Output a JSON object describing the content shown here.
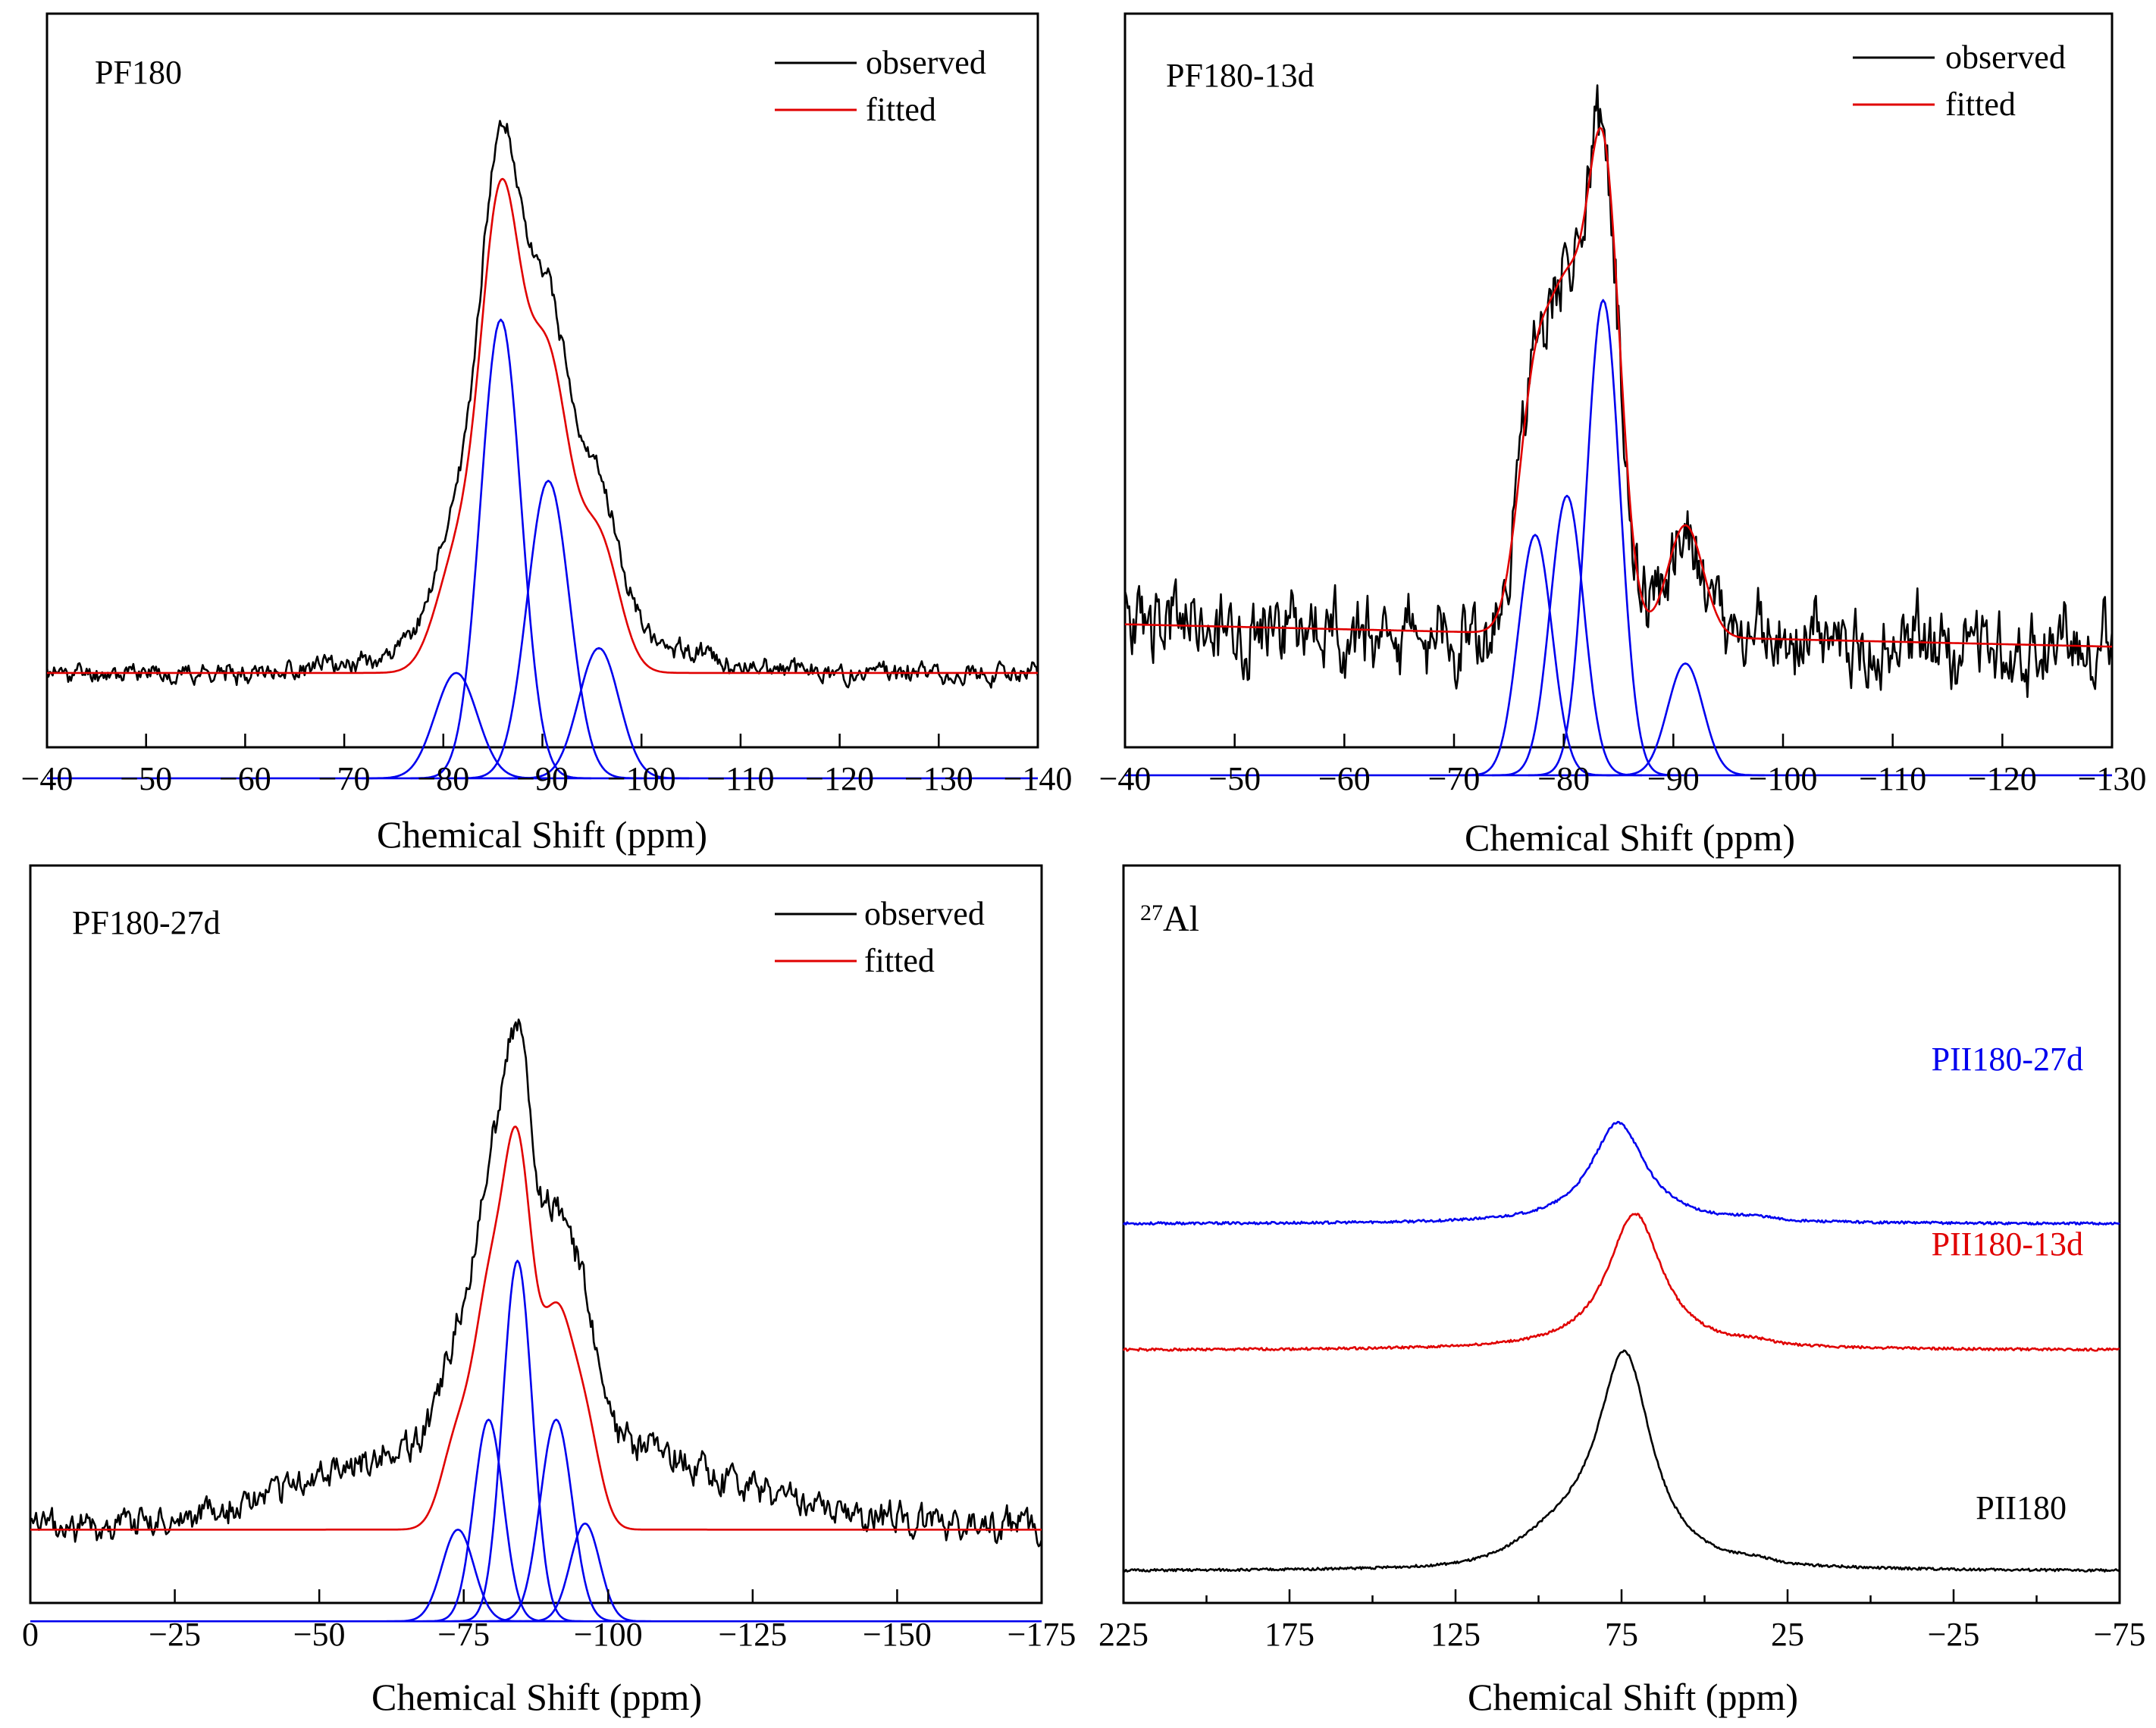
{
  "colors": {
    "observed": "#000000",
    "fitted": "#e00000",
    "components": "#0000ee",
    "blue_label": "#0000ee",
    "red_label": "#e00000",
    "black_label": "#000000"
  },
  "chart_data": [
    {
      "id": "p1",
      "type": "line",
      "title": "PF180",
      "xlabel": "Chemical Shift (ppm)",
      "ylabel": "",
      "xlim": [
        -40,
        -140
      ],
      "xticks": [
        -40,
        -50,
        -60,
        -70,
        -80,
        -90,
        -100,
        -110,
        -120,
        -130,
        -140
      ],
      "xtick_labels": [
        "−40",
        "−50",
        "−60",
        "−70",
        "−80",
        "−90",
        "−100",
        "−110",
        "−120",
        "−130",
        "−140"
      ],
      "ylim": [
        -0.12,
        1.0
      ],
      "legend": {
        "position": "top-right",
        "entries": [
          "observed",
          "fitted"
        ]
      },
      "fitted_baseline": 0.0,
      "component_baseline": -0.17,
      "components": [
        {
          "center": -81.3,
          "amplitude": 0.17,
          "fwhm": 5.0
        },
        {
          "center": -85.8,
          "amplitude": 0.74,
          "fwhm": 4.8
        },
        {
          "center": -90.6,
          "amplitude": 0.48,
          "fwhm": 5.0
        },
        {
          "center": -95.7,
          "amplitude": 0.21,
          "fwhm": 4.8
        }
      ],
      "broad": [
        {
          "center": -90,
          "amplitude": 0.1,
          "fwhm": 24
        }
      ],
      "noise": 0.012,
      "seed": 11
    },
    {
      "id": "p2",
      "type": "line",
      "title": "PF180-13d",
      "xlabel": "Chemical Shift (ppm)",
      "ylabel": "",
      "xlim": [
        -40,
        -130
      ],
      "xticks": [
        -40,
        -50,
        -60,
        -70,
        -80,
        -90,
        -100,
        -110,
        -120,
        -130
      ],
      "xtick_labels": [
        "−40",
        "−50",
        "−60",
        "−70",
        "−80",
        "−90",
        "−100",
        "−110",
        "−120",
        "−130"
      ],
      "ylim": [
        -0.2,
        1.05
      ],
      "legend": {
        "position": "top-right",
        "entries": [
          "observed",
          "fitted"
        ]
      },
      "fitted_baseline": 0.02,
      "fitted_baseline_end": -0.02,
      "component_baseline": -0.25,
      "components": [
        {
          "center": -77.4,
          "amplitude": 0.43,
          "fwhm": 3.6
        },
        {
          "center": -80.3,
          "amplitude": 0.5,
          "fwhm": 3.6
        },
        {
          "center": -83.6,
          "amplitude": 0.85,
          "fwhm": 3.6
        },
        {
          "center": -91.1,
          "amplitude": 0.2,
          "fwhm": 3.8
        }
      ],
      "broad": [],
      "noise": 0.055,
      "seed": 23
    },
    {
      "id": "p3",
      "type": "line",
      "title": "PF180-27d",
      "xlabel": "Chemical Shift (ppm)",
      "ylabel": "",
      "xlim": [
        0,
        -175
      ],
      "xticks": [
        0,
        -25,
        -50,
        -75,
        -100,
        -125,
        -150,
        -175
      ],
      "xtick_labels": [
        "0",
        "−25",
        "−50",
        "−75",
        "−100",
        "−125",
        "−150",
        "−175"
      ],
      "ylim": [
        -0.12,
        1.0
      ],
      "legend": {
        "position": "top-right",
        "entries": [
          "observed",
          "fitted"
        ]
      },
      "fitted_baseline": 0.0,
      "component_baseline": -0.15,
      "components": [
        {
          "center": -74.0,
          "amplitude": 0.15,
          "fwhm": 6.5
        },
        {
          "center": -79.3,
          "amplitude": 0.33,
          "fwhm": 6.0
        },
        {
          "center": -84.3,
          "amplitude": 0.59,
          "fwhm": 6.0
        },
        {
          "center": -91.0,
          "amplitude": 0.33,
          "fwhm": 6.5
        },
        {
          "center": -96.0,
          "amplitude": 0.16,
          "fwhm": 6.0
        }
      ],
      "broad": [
        {
          "center": -85,
          "amplitude": 0.17,
          "fwhm": 70
        }
      ],
      "noise": 0.02,
      "seed": 37
    },
    {
      "id": "p4",
      "type": "line",
      "title": "27Al",
      "title_superscript": "27",
      "title_main": "Al",
      "xlabel": "Chemical Shift (ppm)",
      "ylabel": "",
      "xlim": [
        225,
        -75
      ],
      "xticks": [
        225,
        175,
        125,
        75,
        25,
        -25,
        -75
      ],
      "xtick_labels": [
        "225",
        "175",
        "125",
        "75",
        "25",
        "−25",
        "−75"
      ],
      "minor_xticks": [
        200,
        150,
        100,
        50,
        0,
        -50
      ],
      "ylim": [
        -0.15,
        3.1
      ],
      "series": [
        {
          "name": "PII180",
          "offset": 0.0,
          "amplitude": 1.0,
          "center": 74.0,
          "shoulder": 0.12,
          "color_key": "black_label",
          "seed": 51
        },
        {
          "name": "PII180-13d",
          "offset": 1.05,
          "amplitude": 0.65,
          "center": 71.0,
          "shoulder": 0.0,
          "color_key": "red_label",
          "seed": 52
        },
        {
          "name": "PII180-27d",
          "offset": 1.65,
          "amplitude": 0.48,
          "center": 76.0,
          "shoulder": 0.0,
          "color_key": "blue_label",
          "seed": 53
        }
      ]
    }
  ]
}
